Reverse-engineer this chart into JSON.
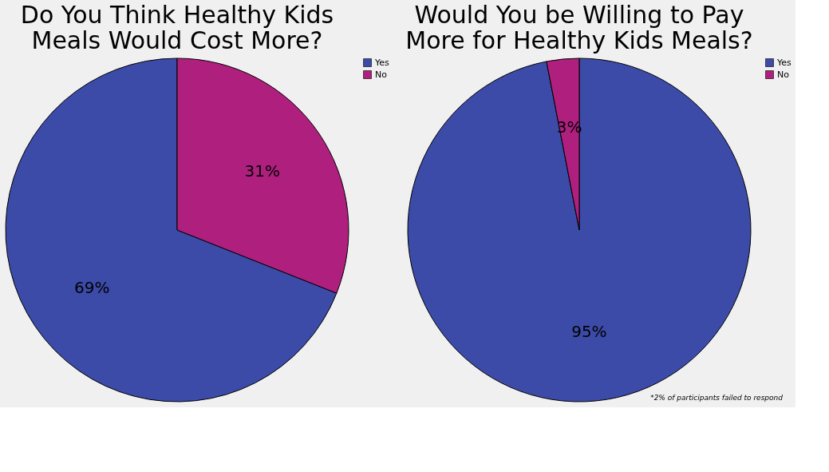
{
  "chart_data": [
    {
      "type": "pie",
      "title": [
        "Do You Think Healthy Kids",
        "Meals Would Cost More?"
      ],
      "categories": [
        "Yes",
        "No"
      ],
      "values": [
        69,
        31
      ],
      "colors": [
        "#3c4ba8",
        "#ae1f7e"
      ],
      "value_labels": [
        "69%",
        "31%"
      ],
      "legend": "top right"
    },
    {
      "type": "pie",
      "title": [
        "Would You be Willing to Pay",
        "More for Healthy Kids Meals?"
      ],
      "categories": [
        "Yes",
        "No"
      ],
      "values": [
        95,
        3
      ],
      "colors": [
        "#3c4ba8",
        "#ae1f7e"
      ],
      "value_labels": [
        "95%",
        "3%"
      ],
      "legend": "top right",
      "annotations": [
        "*2% of participants failed to respond"
      ]
    }
  ]
}
